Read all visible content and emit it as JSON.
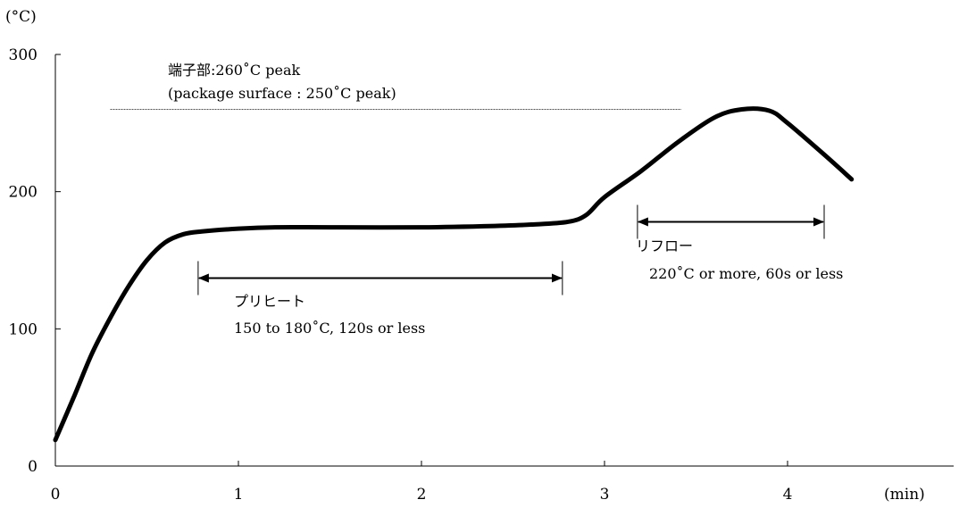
{
  "chart_data": {
    "type": "line",
    "y_unit_label": "(°C)",
    "x_unit_label": "(min)",
    "xlim": [
      0,
      5
    ],
    "ylim": [
      0,
      300
    ],
    "x_ticks": [
      {
        "value": 0,
        "label": "0"
      },
      {
        "value": 1,
        "label": "1"
      },
      {
        "value": 2,
        "label": "2"
      },
      {
        "value": 3,
        "label": "3"
      },
      {
        "value": 4,
        "label": "4"
      }
    ],
    "y_ticks": [
      {
        "value": 0,
        "label": "0"
      },
      {
        "value": 100,
        "label": "100"
      },
      {
        "value": 200,
        "label": "200"
      },
      {
        "value": 300,
        "label": "300"
      }
    ],
    "grid": false,
    "series": [
      {
        "color": "#000000",
        "points": [
          [
            0,
            19
          ],
          [
            0.1,
            50
          ],
          [
            0.2,
            82
          ],
          [
            0.3,
            108
          ],
          [
            0.4,
            131
          ],
          [
            0.5,
            150
          ],
          [
            0.6,
            163
          ],
          [
            0.7,
            169
          ],
          [
            0.8,
            171
          ],
          [
            1.0,
            173
          ],
          [
            1.2,
            174
          ],
          [
            1.5,
            174
          ],
          [
            2.0,
            174
          ],
          [
            2.4,
            175
          ],
          [
            2.6,
            176
          ],
          [
            2.8,
            178
          ],
          [
            2.9,
            183
          ],
          [
            3.0,
            196
          ],
          [
            3.2,
            215
          ],
          [
            3.4,
            236
          ],
          [
            3.6,
            254
          ],
          [
            3.75,
            260
          ],
          [
            3.9,
            259
          ],
          [
            4.0,
            250
          ],
          [
            4.2,
            227
          ],
          [
            4.35,
            209
          ]
        ]
      }
    ],
    "reference_lines": [
      {
        "y": 260,
        "x_start": 0.3,
        "x_end": 3.42,
        "style": "dotted"
      }
    ],
    "annotations": {
      "peak": {
        "line1": "端子部:260˚C peak",
        "line2": "(package surface : 250˚C peak)"
      },
      "preheat": {
        "x_start": 0.78,
        "x_end": 2.77,
        "y": 137,
        "title": "プリヒート",
        "detail": "150 to 180˚C, 120s or less"
      },
      "reflow": {
        "x_start": 3.18,
        "x_end": 4.2,
        "y": 178,
        "title": "リフロー",
        "detail": "220˚C or more, 60s or less"
      }
    }
  }
}
